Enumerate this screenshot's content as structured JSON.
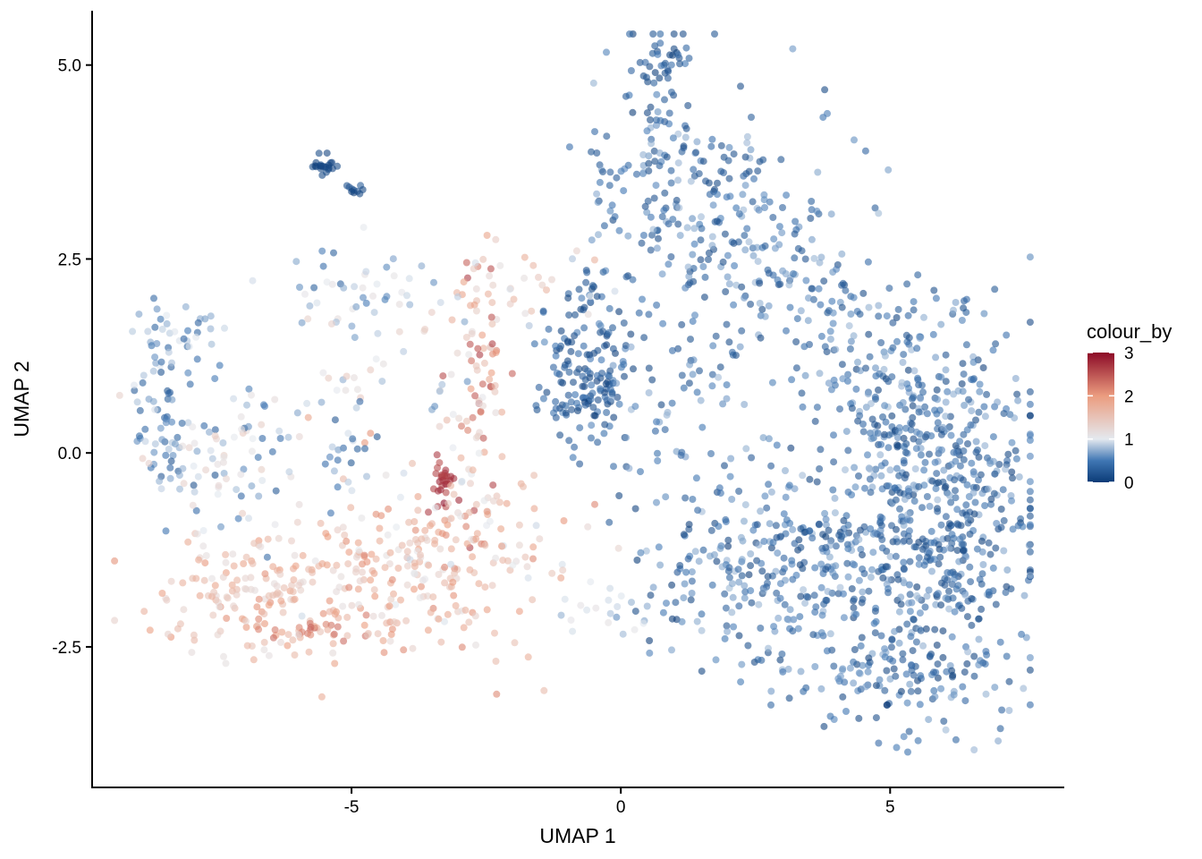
{
  "chart_data": {
    "type": "scatter",
    "title": "",
    "xlabel": "UMAP 1",
    "ylabel": "UMAP 2",
    "xlim": [
      -9.8,
      8.2
    ],
    "ylim": [
      -4.3,
      5.7
    ],
    "xticks": [
      -5,
      0,
      5
    ],
    "xtick_labels": [
      "-5",
      "0",
      "5"
    ],
    "yticks": [
      -2.5,
      0,
      2.5,
      5
    ],
    "ytick_labels": [
      "-2.5",
      "0.0",
      "2.5",
      "5.0"
    ],
    "grid": false,
    "point_opacity": 0.6,
    "legend": {
      "title": "colour_by",
      "placement": "right",
      "range": [
        0,
        3
      ],
      "ticks": [
        0,
        1,
        2,
        3
      ],
      "tick_labels": [
        "0",
        "1",
        "2",
        "3"
      ]
    },
    "colorscale": [
      {
        "value": 0,
        "color": "#0b3b77"
      },
      {
        "value": 0.5,
        "color": "#3f76b3"
      },
      {
        "value": 1.0,
        "color": "#e4e9ef"
      },
      {
        "value": 2.0,
        "color": "#eb9c7f"
      },
      {
        "value": 3.0,
        "color": "#8c0a26"
      }
    ],
    "clusters": [
      {
        "name": "upper-right-tip",
        "cx": 0.8,
        "cy": 4.9,
        "sx": 0.35,
        "sy": 0.3,
        "n": 45,
        "c": [
          0.0,
          0.5
        ]
      },
      {
        "name": "upper-right-arm",
        "cx": 1.4,
        "cy": 3.5,
        "sx": 1.1,
        "sy": 0.6,
        "n": 200,
        "c": [
          0.1,
          0.8
        ]
      },
      {
        "name": "right-diagonal",
        "cx": 3.0,
        "cy": 2.3,
        "sx": 0.9,
        "sy": 0.6,
        "n": 120,
        "c": [
          0.1,
          0.8
        ]
      },
      {
        "name": "mid-left-blob",
        "cx": -0.6,
        "cy": 1.4,
        "sx": 0.5,
        "sy": 0.5,
        "n": 110,
        "c": [
          0.0,
          0.6
        ]
      },
      {
        "name": "mid-lower-left",
        "cx": -0.7,
        "cy": 0.7,
        "sx": 0.4,
        "sy": 0.4,
        "n": 60,
        "c": [
          0.0,
          0.5
        ]
      },
      {
        "name": "center-scatter",
        "cx": 1.5,
        "cy": 0.6,
        "sx": 1.0,
        "sy": 0.8,
        "n": 90,
        "c": [
          0.1,
          0.8
        ]
      },
      {
        "name": "right-lobe",
        "cx": 5.8,
        "cy": -0.9,
        "sx": 1.0,
        "sy": 1.2,
        "n": 620,
        "c": [
          0.0,
          0.8
        ]
      },
      {
        "name": "right-lobe-upper",
        "cx": 5.2,
        "cy": 0.8,
        "sx": 0.8,
        "sy": 0.7,
        "n": 160,
        "c": [
          0.1,
          0.8
        ]
      },
      {
        "name": "lower-center",
        "cx": 2.6,
        "cy": -1.6,
        "sx": 1.2,
        "sy": 0.6,
        "n": 260,
        "c": [
          0.0,
          0.8
        ]
      },
      {
        "name": "lower-tail",
        "cx": 5.0,
        "cy": -3.0,
        "sx": 0.9,
        "sy": 0.35,
        "n": 70,
        "c": [
          0.0,
          0.7
        ]
      },
      {
        "name": "small-top-island",
        "cx": -5.5,
        "cy": 3.7,
        "sx": 0.12,
        "sy": 0.07,
        "n": 22,
        "c": [
          0.0,
          0.2
        ]
      },
      {
        "name": "small-top-island-2",
        "cx": -4.9,
        "cy": 3.4,
        "sx": 0.1,
        "sy": 0.06,
        "n": 10,
        "c": [
          0.0,
          0.3
        ]
      },
      {
        "name": "left-upper-blue",
        "cx": -5.0,
        "cy": 2.1,
        "sx": 0.6,
        "sy": 0.2,
        "n": 35,
        "c": [
          0.3,
          1.2
        ]
      },
      {
        "name": "left-arm-blue",
        "cx": -8.5,
        "cy": 0.6,
        "sx": 0.25,
        "sy": 0.6,
        "n": 70,
        "c": [
          0.2,
          1.0
        ]
      },
      {
        "name": "left-arm-top",
        "cx": -8.1,
        "cy": 1.5,
        "sx": 0.3,
        "sy": 0.15,
        "n": 25,
        "c": [
          0.3,
          1.0
        ]
      },
      {
        "name": "left-inner",
        "cx": -7.0,
        "cy": 0.0,
        "sx": 0.8,
        "sy": 0.5,
        "n": 90,
        "c": [
          0.2,
          1.4
        ]
      },
      {
        "name": "left-bottom-red",
        "cx": -6.5,
        "cy": -1.8,
        "sx": 1.2,
        "sy": 0.4,
        "n": 180,
        "c": [
          1.1,
          2.1
        ]
      },
      {
        "name": "left-bottom-floor",
        "cx": -6.0,
        "cy": -2.3,
        "sx": 0.9,
        "sy": 0.1,
        "n": 40,
        "c": [
          1.5,
          2.4
        ]
      },
      {
        "name": "mid-red-stream",
        "cx": -2.6,
        "cy": 1.1,
        "sx": 0.25,
        "sy": 0.9,
        "n": 80,
        "c": [
          1.0,
          2.7
        ]
      },
      {
        "name": "red-core",
        "cx": -3.3,
        "cy": -0.4,
        "sx": 0.15,
        "sy": 0.2,
        "n": 30,
        "c": [
          2.5,
          3.0
        ]
      },
      {
        "name": "red-bottom-center",
        "cx": -3.3,
        "cy": -1.3,
        "sx": 1.1,
        "sy": 0.6,
        "n": 230,
        "c": [
          0.9,
          2.2
        ]
      },
      {
        "name": "bridge-fringe",
        "cx": -1.5,
        "cy": 2.1,
        "sx": 0.6,
        "sy": 0.3,
        "n": 25,
        "c": [
          0.8,
          1.8
        ]
      },
      {
        "name": "center-lone-blue",
        "cx": -5.2,
        "cy": 0.1,
        "sx": 0.3,
        "sy": 0.5,
        "n": 20,
        "c": [
          0.2,
          1.0
        ]
      },
      {
        "name": "left-mid-pale",
        "cx": -4.3,
        "cy": 1.2,
        "sx": 1.0,
        "sy": 0.6,
        "n": 35,
        "c": [
          0.6,
          1.4
        ]
      },
      {
        "name": "lower-bridge",
        "cx": -0.2,
        "cy": -2.1,
        "sx": 0.6,
        "sy": 0.15,
        "n": 20,
        "c": [
          0.6,
          1.2
        ]
      }
    ]
  }
}
